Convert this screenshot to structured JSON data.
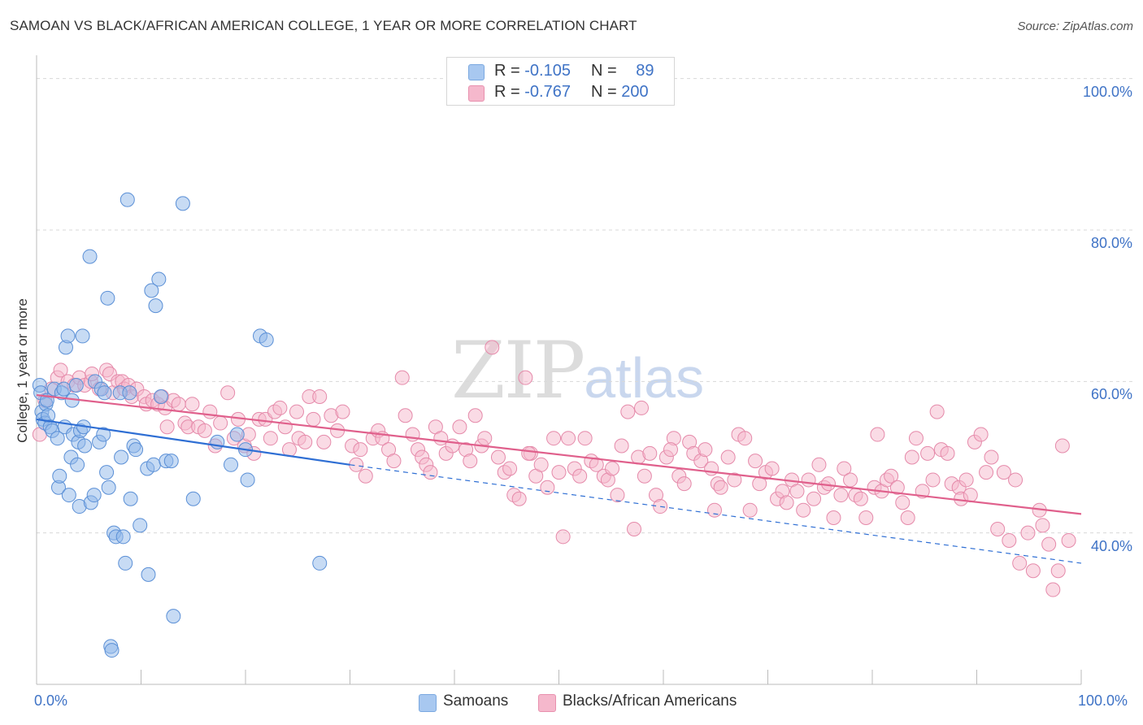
{
  "header": {
    "title": "SAMOAN VS BLACK/AFRICAN AMERICAN COLLEGE, 1 YEAR OR MORE CORRELATION CHART",
    "source": "Source: ZipAtlas.com"
  },
  "watermark": {
    "zip": "ZIP",
    "atlas": "atlas"
  },
  "legend": {
    "rows": [
      {
        "r_label": "R =",
        "r_value": "-0.105",
        "n_label": "N =",
        "n_value": "89",
        "color": "#a8c8f0"
      },
      {
        "r_label": "R =",
        "r_value": "-0.767",
        "n_label": "N =",
        "n_value": "200",
        "color": "#f5b8cc"
      }
    ]
  },
  "bottom_legend": {
    "items": [
      {
        "label": "Samoans",
        "color": "#a8c8f0"
      },
      {
        "label": "Blacks/African Americans",
        "color": "#f5b8cc"
      }
    ]
  },
  "chart_data": {
    "type": "scatter",
    "title": "SAMOAN VS BLACK/AFRICAN AMERICAN COLLEGE, 1 YEAR OR MORE CORRELATION CHART",
    "xlabel": "",
    "ylabel": "College, 1 year or more",
    "xlim": [
      0,
      100
    ],
    "ylim": [
      20,
      102
    ],
    "x_tick_labels": [
      "0.0%",
      "100.0%"
    ],
    "y_ticks": [
      40,
      60,
      80,
      100
    ],
    "y_tick_labels": [
      "40.0%",
      "60.0%",
      "80.0%",
      "100.0%"
    ],
    "grid": true,
    "legend_position": "top-center",
    "series": [
      {
        "name": "Samoans",
        "color": "#8fb8ea",
        "stroke": "#5a8fd6",
        "trend": {
          "x0": 0,
          "y0": 55.0,
          "x1": 30,
          "y1": 49.0,
          "dash_to_x": 100,
          "dash_to_y": 36.0,
          "color": "#2f6fd4"
        },
        "points": [
          [
            0.3,
            59.5
          ],
          [
            0.4,
            58.5
          ],
          [
            0.5,
            56.0
          ],
          [
            0.6,
            55.0
          ],
          [
            0.8,
            54.5
          ],
          [
            0.9,
            57.0
          ],
          [
            1.0,
            57.5
          ],
          [
            1.1,
            55.5
          ],
          [
            1.3,
            54.0
          ],
          [
            1.5,
            53.5
          ],
          [
            1.7,
            59.0
          ],
          [
            2.0,
            52.5
          ],
          [
            2.1,
            46.0
          ],
          [
            2.2,
            47.5
          ],
          [
            2.4,
            58.5
          ],
          [
            2.6,
            59.0
          ],
          [
            2.7,
            54.0
          ],
          [
            2.8,
            64.5
          ],
          [
            3.0,
            66.0
          ],
          [
            3.1,
            45.0
          ],
          [
            3.3,
            50.0
          ],
          [
            3.4,
            57.5
          ],
          [
            3.5,
            53.0
          ],
          [
            3.8,
            59.5
          ],
          [
            3.9,
            49.0
          ],
          [
            4.0,
            52.0
          ],
          [
            4.1,
            43.5
          ],
          [
            4.2,
            53.5
          ],
          [
            4.4,
            66.0
          ],
          [
            4.5,
            54.0
          ],
          [
            4.6,
            51.5
          ],
          [
            5.1,
            76.5
          ],
          [
            5.2,
            44.0
          ],
          [
            5.5,
            45.0
          ],
          [
            5.6,
            60.0
          ],
          [
            6.0,
            52.0
          ],
          [
            6.2,
            59.0
          ],
          [
            6.4,
            53.0
          ],
          [
            6.5,
            58.5
          ],
          [
            6.7,
            48.0
          ],
          [
            6.8,
            71.0
          ],
          [
            6.9,
            46.0
          ],
          [
            7.1,
            25.0
          ],
          [
            7.2,
            24.5
          ],
          [
            7.4,
            40.0
          ],
          [
            7.6,
            39.5
          ],
          [
            8.0,
            58.5
          ],
          [
            8.1,
            50.0
          ],
          [
            8.3,
            39.5
          ],
          [
            8.5,
            36.0
          ],
          [
            8.7,
            84.0
          ],
          [
            8.9,
            58.5
          ],
          [
            9.0,
            44.5
          ],
          [
            9.3,
            51.5
          ],
          [
            9.5,
            51.0
          ],
          [
            9.9,
            41.0
          ],
          [
            10.6,
            48.5
          ],
          [
            10.7,
            34.5
          ],
          [
            11.0,
            72.0
          ],
          [
            11.2,
            49.0
          ],
          [
            11.4,
            70.0
          ],
          [
            11.7,
            73.5
          ],
          [
            11.9,
            58.0
          ],
          [
            12.4,
            49.5
          ],
          [
            12.9,
            49.5
          ],
          [
            13.1,
            29.0
          ],
          [
            14.0,
            83.5
          ],
          [
            15.0,
            44.5
          ],
          [
            17.3,
            52.0
          ],
          [
            18.6,
            49.0
          ],
          [
            19.2,
            53.0
          ],
          [
            20.0,
            51.0
          ],
          [
            20.2,
            47.0
          ],
          [
            21.4,
            66.0
          ],
          [
            22.0,
            65.5
          ],
          [
            27.1,
            36.0
          ]
        ]
      },
      {
        "name": "Blacks/African Americans",
        "color": "#f5b8cc",
        "stroke": "#e58aaa",
        "trend": {
          "x0": 0,
          "y0": 58.2,
          "x1": 100,
          "y1": 42.5,
          "color": "#e0608c"
        },
        "points": [
          [
            0.3,
            53.0
          ],
          [
            0.8,
            57.5
          ],
          [
            1.4,
            59.0
          ],
          [
            2.0,
            60.5
          ],
          [
            2.3,
            61.5
          ],
          [
            3.0,
            60.0
          ],
          [
            3.6,
            59.5
          ],
          [
            4.1,
            60.5
          ],
          [
            4.6,
            59.5
          ],
          [
            5.2,
            60.0
          ],
          [
            5.3,
            61.0
          ],
          [
            6.0,
            59.0
          ],
          [
            6.7,
            61.5
          ],
          [
            7.0,
            61.0
          ],
          [
            7.3,
            58.5
          ],
          [
            7.8,
            60.0
          ],
          [
            8.2,
            60.0
          ],
          [
            8.4,
            59.0
          ],
          [
            8.8,
            59.5
          ],
          [
            9.1,
            58.0
          ],
          [
            9.6,
            59.0
          ],
          [
            10.3,
            58.0
          ],
          [
            10.5,
            57.0
          ],
          [
            11.1,
            57.5
          ],
          [
            11.6,
            57.0
          ],
          [
            12.0,
            58.0
          ],
          [
            12.3,
            56.5
          ],
          [
            12.5,
            54.0
          ],
          [
            13.1,
            57.5
          ],
          [
            13.6,
            57.0
          ],
          [
            14.2,
            54.5
          ],
          [
            14.5,
            54.0
          ],
          [
            14.9,
            57.0
          ],
          [
            15.5,
            54.0
          ],
          [
            16.1,
            53.5
          ],
          [
            16.6,
            56.0
          ],
          [
            17.1,
            51.5
          ],
          [
            17.6,
            54.5
          ],
          [
            18.3,
            58.5
          ],
          [
            18.9,
            52.5
          ],
          [
            19.3,
            55.0
          ],
          [
            19.9,
            51.5
          ],
          [
            20.3,
            53.0
          ],
          [
            20.8,
            50.5
          ],
          [
            21.3,
            55.0
          ],
          [
            21.9,
            55.0
          ],
          [
            22.4,
            52.5
          ],
          [
            22.8,
            56.0
          ],
          [
            23.3,
            56.5
          ],
          [
            23.8,
            54.0
          ],
          [
            24.2,
            51.0
          ],
          [
            24.9,
            56.0
          ],
          [
            25.1,
            52.5
          ],
          [
            25.7,
            52.0
          ],
          [
            26.1,
            58.0
          ],
          [
            26.5,
            55.0
          ],
          [
            27.1,
            58.0
          ],
          [
            27.5,
            52.0
          ],
          [
            28.2,
            55.5
          ],
          [
            28.8,
            53.5
          ],
          [
            29.3,
            56.0
          ],
          [
            30.2,
            51.5
          ],
          [
            30.6,
            49.0
          ],
          [
            31.0,
            51.0
          ],
          [
            31.5,
            47.5
          ],
          [
            32.2,
            52.5
          ],
          [
            32.7,
            53.5
          ],
          [
            33.1,
            52.5
          ],
          [
            33.7,
            51.0
          ],
          [
            34.2,
            49.5
          ],
          [
            35.0,
            60.5
          ],
          [
            35.3,
            55.5
          ],
          [
            36.0,
            53.0
          ],
          [
            36.5,
            51.0
          ],
          [
            36.9,
            50.0
          ],
          [
            37.3,
            49.0
          ],
          [
            37.7,
            48.0
          ],
          [
            38.2,
            54.0
          ],
          [
            38.7,
            52.5
          ],
          [
            39.2,
            50.5
          ],
          [
            39.8,
            51.5
          ],
          [
            40.5,
            54.0
          ],
          [
            41.1,
            51.0
          ],
          [
            41.5,
            49.5
          ],
          [
            42.0,
            55.5
          ],
          [
            42.6,
            51.5
          ],
          [
            42.9,
            52.5
          ],
          [
            43.6,
            64.5
          ],
          [
            44.2,
            50.0
          ],
          [
            44.8,
            48.0
          ],
          [
            45.3,
            48.5
          ],
          [
            45.7,
            45.0
          ],
          [
            46.2,
            44.5
          ],
          [
            46.8,
            60.5
          ],
          [
            47.3,
            50.5
          ],
          [
            47.8,
            47.5
          ],
          [
            48.3,
            49.0
          ],
          [
            48.9,
            46.0
          ],
          [
            49.5,
            52.5
          ],
          [
            50.0,
            48.0
          ],
          [
            50.4,
            39.5
          ],
          [
            50.9,
            52.5
          ],
          [
            51.5,
            48.5
          ],
          [
            52.0,
            47.5
          ],
          [
            52.5,
            52.5
          ],
          [
            53.1,
            49.5
          ],
          [
            53.6,
            49.0
          ],
          [
            54.3,
            47.5
          ],
          [
            54.7,
            47.0
          ],
          [
            55.1,
            48.5
          ],
          [
            55.6,
            45.0
          ],
          [
            56.0,
            51.5
          ],
          [
            56.6,
            56.0
          ],
          [
            57.2,
            40.5
          ],
          [
            57.6,
            50.0
          ],
          [
            58.2,
            47.5
          ],
          [
            58.7,
            50.5
          ],
          [
            59.3,
            45.0
          ],
          [
            59.7,
            43.5
          ],
          [
            60.3,
            50.0
          ],
          [
            61.0,
            52.5
          ],
          [
            61.5,
            47.5
          ],
          [
            62.0,
            46.5
          ],
          [
            62.5,
            52.0
          ],
          [
            62.9,
            50.5
          ],
          [
            63.6,
            49.5
          ],
          [
            64.0,
            51.0
          ],
          [
            64.6,
            48.5
          ],
          [
            65.2,
            46.5
          ],
          [
            65.5,
            46.0
          ],
          [
            66.2,
            50.0
          ],
          [
            66.8,
            47.0
          ],
          [
            67.2,
            53.0
          ],
          [
            67.8,
            52.5
          ],
          [
            68.3,
            43.0
          ],
          [
            68.8,
            49.5
          ],
          [
            69.2,
            46.5
          ],
          [
            69.8,
            48.0
          ],
          [
            70.4,
            48.5
          ],
          [
            70.9,
            44.5
          ],
          [
            71.4,
            45.5
          ],
          [
            71.8,
            44.0
          ],
          [
            72.3,
            47.0
          ],
          [
            72.8,
            45.5
          ],
          [
            73.4,
            43.0
          ],
          [
            73.9,
            47.0
          ],
          [
            74.4,
            44.5
          ],
          [
            74.9,
            49.0
          ],
          [
            75.4,
            46.0
          ],
          [
            75.8,
            46.5
          ],
          [
            76.3,
            42.0
          ],
          [
            77.0,
            45.0
          ],
          [
            77.3,
            48.5
          ],
          [
            77.9,
            47.0
          ],
          [
            78.4,
            45.0
          ],
          [
            78.9,
            44.5
          ],
          [
            79.4,
            42.0
          ],
          [
            80.2,
            46.0
          ],
          [
            80.5,
            53.0
          ],
          [
            80.9,
            45.5
          ],
          [
            81.4,
            47.0
          ],
          [
            81.8,
            47.5
          ],
          [
            82.4,
            46.0
          ],
          [
            82.9,
            44.0
          ],
          [
            83.4,
            42.0
          ],
          [
            83.8,
            50.0
          ],
          [
            84.2,
            52.5
          ],
          [
            84.8,
            45.5
          ],
          [
            85.3,
            50.5
          ],
          [
            85.8,
            47.0
          ],
          [
            86.2,
            56.0
          ],
          [
            86.6,
            51.0
          ],
          [
            87.2,
            50.5
          ],
          [
            87.6,
            46.5
          ],
          [
            88.3,
            46.0
          ],
          [
            88.5,
            44.5
          ],
          [
            89.0,
            47.0
          ],
          [
            89.4,
            45.0
          ],
          [
            89.8,
            52.0
          ],
          [
            90.4,
            53.0
          ],
          [
            90.9,
            48.0
          ],
          [
            91.4,
            50.0
          ],
          [
            92.0,
            40.5
          ],
          [
            92.6,
            48.0
          ],
          [
            93.1,
            39.0
          ],
          [
            93.7,
            47.0
          ],
          [
            94.1,
            36.0
          ],
          [
            94.9,
            40.0
          ],
          [
            95.4,
            35.0
          ],
          [
            96.0,
            43.0
          ],
          [
            96.3,
            41.0
          ],
          [
            96.9,
            38.5
          ],
          [
            97.3,
            32.5
          ],
          [
            97.8,
            35.0
          ],
          [
            98.2,
            51.5
          ],
          [
            98.8,
            39.0
          ],
          [
            47.1,
            50.5
          ],
          [
            57.9,
            56.5
          ],
          [
            60.7,
            51.0
          ],
          [
            64.9,
            43.0
          ]
        ]
      }
    ]
  }
}
